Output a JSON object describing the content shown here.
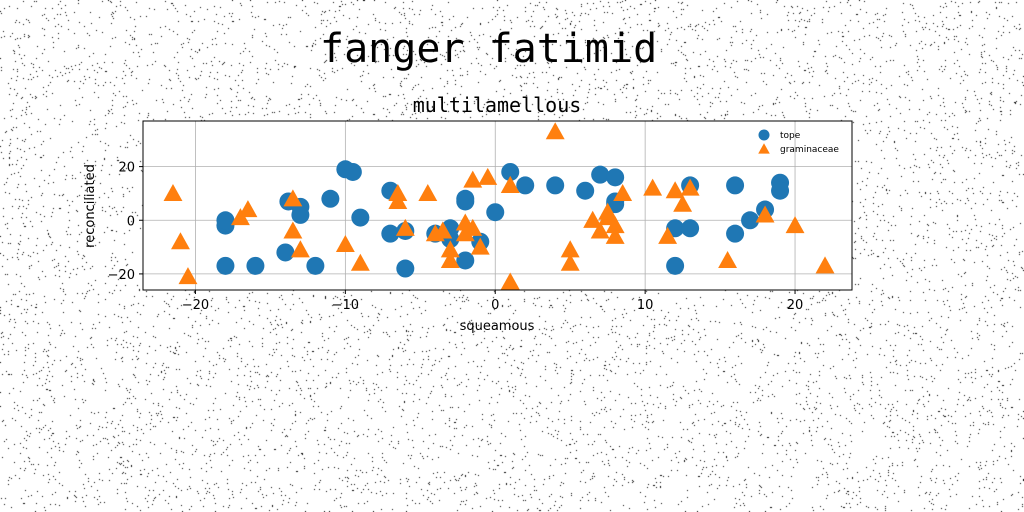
{
  "figure_title": "fanger fatimid",
  "chart_data": {
    "type": "scatter",
    "title": "multilamellous",
    "xlabel": "squeamous",
    "ylabel": "reconciliated",
    "xlim": [
      -23.5,
      23.8
    ],
    "ylim": [
      -26,
      37
    ],
    "xticks": [
      -20,
      -10,
      0,
      10,
      20
    ],
    "yticks": [
      -20,
      0,
      20
    ],
    "grid": true,
    "legend": "top-right",
    "series": [
      {
        "name": "tope",
        "marker": "circle",
        "color": "#1f77b4",
        "points": [
          [
            -18,
            -17
          ],
          [
            -18,
            -2
          ],
          [
            -18,
            0
          ],
          [
            -16,
            -17
          ],
          [
            -14,
            -12
          ],
          [
            -13.8,
            7
          ],
          [
            -13,
            5
          ],
          [
            -13,
            2
          ],
          [
            -12,
            -17
          ],
          [
            -11,
            8
          ],
          [
            -10,
            19
          ],
          [
            -9.5,
            18
          ],
          [
            -9,
            1
          ],
          [
            -7,
            11
          ],
          [
            -7,
            -5
          ],
          [
            -6,
            -4
          ],
          [
            -6,
            -18
          ],
          [
            -4,
            -5
          ],
          [
            -3,
            -3
          ],
          [
            -3,
            -7
          ],
          [
            -2,
            -15
          ],
          [
            -2,
            7
          ],
          [
            -2,
            8
          ],
          [
            -1,
            -8
          ],
          [
            0,
            3
          ],
          [
            1,
            18
          ],
          [
            2,
            13
          ],
          [
            4,
            13
          ],
          [
            6,
            11
          ],
          [
            7,
            17
          ],
          [
            8,
            16
          ],
          [
            8,
            7
          ],
          [
            8,
            6
          ],
          [
            12,
            -17
          ],
          [
            12,
            -3
          ],
          [
            13,
            -3
          ],
          [
            13,
            13
          ],
          [
            16,
            13
          ],
          [
            16,
            -5
          ],
          [
            17,
            0
          ],
          [
            18,
            4
          ],
          [
            19,
            14
          ],
          [
            19,
            11
          ]
        ]
      },
      {
        "name": "graminaceae",
        "marker": "triangle",
        "color": "#ff7f0e",
        "points": [
          [
            -21.5,
            10
          ],
          [
            -21,
            -8
          ],
          [
            -20.5,
            -21
          ],
          [
            -17,
            1
          ],
          [
            -16.5,
            4
          ],
          [
            -13.5,
            8
          ],
          [
            -13.5,
            -4
          ],
          [
            -13,
            -11
          ],
          [
            -10,
            -9
          ],
          [
            -9,
            -16
          ],
          [
            -6.5,
            10
          ],
          [
            -6.5,
            7
          ],
          [
            -6,
            -3
          ],
          [
            -4.5,
            10
          ],
          [
            -4,
            -5
          ],
          [
            -3.5,
            -4
          ],
          [
            -3,
            -11
          ],
          [
            -3,
            -15
          ],
          [
            -2,
            -1
          ],
          [
            -2,
            -5
          ],
          [
            -1.5,
            -3
          ],
          [
            -1.5,
            15
          ],
          [
            -1,
            -10
          ],
          [
            -0.5,
            16
          ],
          [
            1,
            -23
          ],
          [
            1,
            13
          ],
          [
            4,
            33
          ],
          [
            5,
            -16
          ],
          [
            5,
            -11
          ],
          [
            6.5,
            0
          ],
          [
            7,
            -4
          ],
          [
            7.5,
            1
          ],
          [
            7.5,
            3
          ],
          [
            8,
            -2
          ],
          [
            8,
            -6
          ],
          [
            8.5,
            10
          ],
          [
            10.5,
            12
          ],
          [
            11.5,
            -6
          ],
          [
            12,
            11
          ],
          [
            12.5,
            6
          ],
          [
            13,
            12
          ],
          [
            15.5,
            -15
          ],
          [
            18,
            2
          ],
          [
            20,
            -2
          ],
          [
            22,
            -17
          ]
        ]
      }
    ]
  }
}
